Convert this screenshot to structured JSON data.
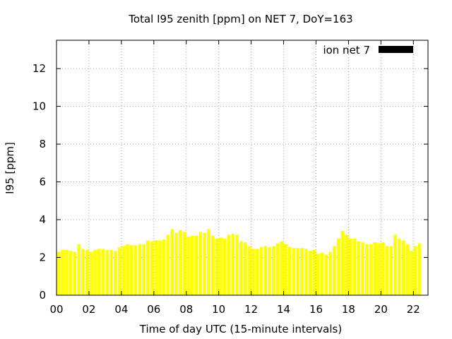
{
  "chart_data": {
    "type": "bar",
    "title": "Total I95 zenith [ppm] on NET 7, DoY=163",
    "xlabel": "Time of day UTC (15-minute intervals)",
    "ylabel": "I95 [ppm]",
    "xlim": [
      0,
      22.9
    ],
    "ylim": [
      0,
      13.5
    ],
    "x_ticks": [
      0,
      2,
      4,
      6,
      8,
      10,
      12,
      14,
      16,
      18,
      20,
      22
    ],
    "x_tick_labels": [
      "00",
      "02",
      "04",
      "06",
      "08",
      "10",
      "12",
      "14",
      "16",
      "18",
      "20",
      "22"
    ],
    "y_ticks": [
      0,
      2,
      4,
      6,
      8,
      10,
      12
    ],
    "y_tick_labels": [
      "0",
      "2",
      "4",
      "6",
      "8",
      "10",
      "12"
    ],
    "grid": true,
    "legend_position": "top-right",
    "interval_hours": 0.25,
    "series": [
      {
        "name": "ion net 7",
        "bar_color": "#ffff00",
        "legend_color": "#000000",
        "values": [
          2.3,
          2.4,
          2.4,
          2.35,
          2.3,
          2.7,
          2.45,
          2.4,
          2.3,
          2.4,
          2.45,
          2.45,
          2.4,
          2.4,
          2.35,
          2.55,
          2.6,
          2.7,
          2.65,
          2.65,
          2.7,
          2.7,
          2.9,
          2.85,
          2.9,
          2.9,
          2.95,
          3.2,
          3.5,
          3.3,
          3.45,
          3.35,
          3.1,
          3.15,
          3.15,
          3.35,
          3.3,
          3.5,
          3.15,
          3.0,
          3.05,
          3.0,
          3.2,
          3.25,
          3.2,
          2.85,
          2.8,
          2.6,
          2.45,
          2.45,
          2.55,
          2.6,
          2.55,
          2.6,
          2.75,
          2.85,
          2.7,
          2.55,
          2.5,
          2.5,
          2.5,
          2.45,
          2.35,
          2.4,
          2.2,
          2.25,
          2.15,
          2.3,
          2.6,
          3.0,
          3.4,
          3.2,
          3.0,
          3.0,
          2.85,
          2.8,
          2.7,
          2.7,
          2.8,
          2.75,
          2.8,
          2.6,
          2.6,
          3.2,
          3.0,
          2.9,
          2.7,
          2.35,
          2.6,
          2.75
        ]
      }
    ]
  }
}
